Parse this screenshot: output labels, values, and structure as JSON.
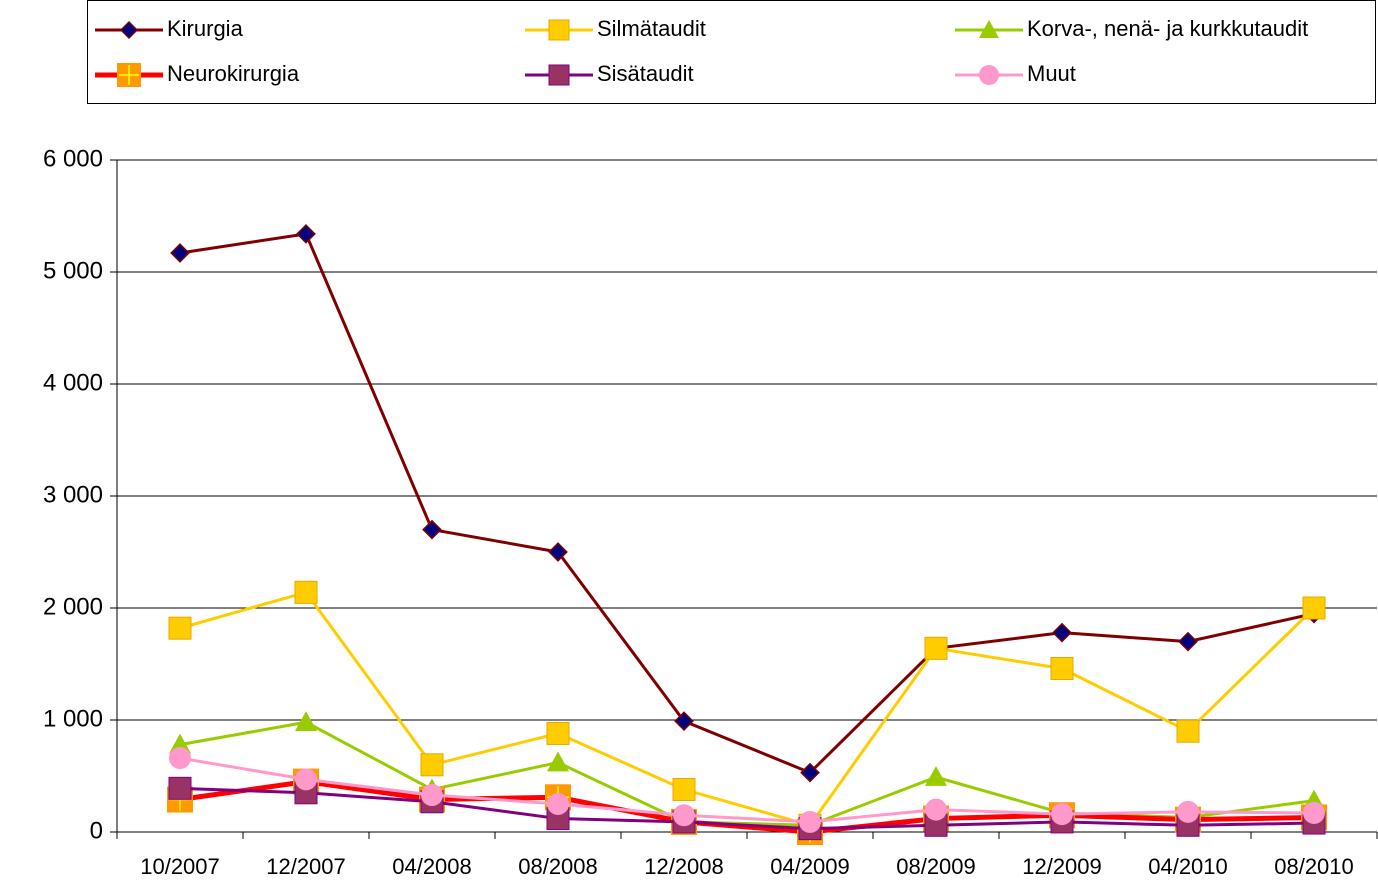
{
  "chart_data": {
    "type": "line",
    "categories": [
      "10/2007",
      "12/2007",
      "04/2008",
      "08/2008",
      "12/2008",
      "04/2009",
      "08/2009",
      "12/2009",
      "04/2010",
      "08/2010"
    ],
    "series": [
      {
        "name": "Kirurgia",
        "color": "#800000",
        "marker": "diamond",
        "marker_color": "#000080",
        "values": [
          5170,
          5340,
          2700,
          2500,
          990,
          530,
          1640,
          1780,
          1700,
          1950
        ]
      },
      {
        "name": "Silmätaudit",
        "color": "#FFCC00",
        "marker": "square",
        "marker_color": "#FFCC00",
        "values": [
          1820,
          2140,
          600,
          880,
          380,
          60,
          1640,
          1460,
          900,
          2000
        ]
      },
      {
        "name": "Korva-, nenä- ja kurkkutaudit",
        "color": "#99CC00",
        "marker": "triangle",
        "marker_color": "#99CC00",
        "values": [
          780,
          980,
          380,
          620,
          90,
          60,
          490,
          170,
          130,
          280
        ]
      },
      {
        "name": "Neurokirurgia",
        "color": "#FF0000",
        "marker": "plus-square",
        "marker_color": "#FF9900",
        "values": [
          290,
          450,
          290,
          310,
          90,
          0,
          120,
          150,
          110,
          130
        ]
      },
      {
        "name": "Sisätaudit",
        "color": "#800080",
        "marker": "square",
        "marker_color": "#993366",
        "values": [
          390,
          350,
          270,
          120,
          90,
          30,
          60,
          90,
          60,
          80
        ]
      },
      {
        "name": "Muut",
        "color": "#FF99CC",
        "marker": "circle",
        "marker_color": "#FF99CC",
        "values": [
          660,
          470,
          330,
          250,
          150,
          90,
          200,
          160,
          180,
          170
        ]
      }
    ],
    "ylim": [
      0,
      6000
    ],
    "yticks": [
      0,
      {
        "value": 1000,
        "label": "1 000"
      },
      {
        "value": 2000,
        "label": "2 000"
      },
      {
        "value": 3000,
        "label": "3 000"
      },
      {
        "value": 4000,
        "label": "4 000"
      },
      {
        "value": 5000,
        "label": "5 000"
      },
      {
        "value": 6000,
        "label": "6 000"
      }
    ],
    "grid": true,
    "legend": "top"
  }
}
